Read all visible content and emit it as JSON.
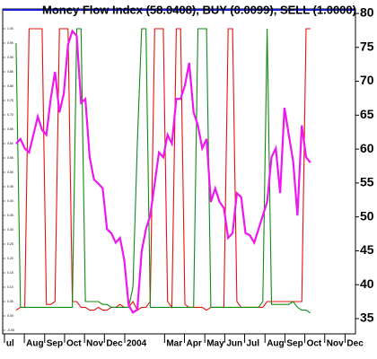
{
  "chart_data": {
    "type": "line",
    "title": "Money Flow Index (58.0408), BUY (0.0099), SELL (1.0000)",
    "x": [
      0,
      1,
      2,
      3,
      4,
      5,
      6,
      7,
      8,
      9,
      10,
      11,
      12,
      13,
      14,
      15,
      16,
      17,
      18,
      19,
      20,
      21,
      22,
      23,
      24,
      25,
      26,
      27,
      28,
      29,
      30,
      31,
      32,
      33,
      34,
      35,
      36,
      37,
      38,
      39,
      40,
      41,
      42,
      43,
      44,
      45,
      46,
      47,
      48,
      49,
      50,
      51,
      52,
      53,
      54,
      55,
      56,
      57,
      58,
      59,
      60,
      61,
      62,
      63,
      64,
      65,
      66,
      67,
      68
    ],
    "series": [
      {
        "name": "SELL",
        "color": "#e8100c",
        "axis": "y",
        "values": [
          0.02,
          0.03,
          0.03,
          1,
          1,
          1,
          1,
          0.04,
          0.04,
          0.05,
          1,
          1,
          1,
          0.05,
          0.05,
          0.03,
          0.03,
          0.02,
          0.02,
          0.03,
          0.02,
          0.02,
          0.03,
          0.03,
          0.04,
          0.03,
          0.03,
          0.05,
          0.02,
          0.03,
          0.03,
          0.05,
          1,
          1,
          1,
          0.05,
          0.03,
          1,
          1,
          0.04,
          0.03,
          0.03,
          0.03,
          0.03,
          0.02,
          0.03,
          0.03,
          0.03,
          0.03,
          1,
          1,
          0.05,
          0.03,
          0.03,
          0.03,
          0.03,
          0.03,
          0.03,
          0.05,
          0.05,
          0.05,
          0.05,
          0.05,
          0.05,
          0.05,
          0.05,
          0.05,
          1,
          1
        ]
      },
      {
        "name": "BUY",
        "color": "#118a12",
        "axis": "y",
        "values": [
          0.95,
          0.03,
          0.03,
          0.03,
          0.03,
          0.03,
          0.03,
          0.03,
          0.03,
          0.03,
          0.03,
          0.03,
          0.03,
          0.03,
          1,
          1,
          0.05,
          0.05,
          0.05,
          0.05,
          0.04,
          0.04,
          0.03,
          0.03,
          0.03,
          0.03,
          0.03,
          0.1,
          0.6,
          1,
          1,
          0.03,
          0.03,
          0.03,
          0.03,
          0.03,
          0.03,
          0.03,
          0.03,
          0.03,
          0.03,
          0.03,
          1,
          1,
          1,
          0.03,
          0.03,
          0.03,
          0.03,
          0.03,
          0.03,
          0.03,
          0.03,
          0.03,
          0.03,
          0.03,
          0.03,
          0.05,
          1,
          0.04,
          0.04,
          0.04,
          0.04,
          0.04,
          0.05,
          0.03,
          0.02,
          0.02,
          0.01
        ]
      },
      {
        "name": "Money Flow Index",
        "color": "#f016f0",
        "axis": "y2",
        "values": [
          60.8,
          61.5,
          60.1,
          59.5,
          62.1,
          64.8,
          62.8,
          62.1,
          67.4,
          71.4,
          65.4,
          68.1,
          75.4,
          77.4,
          76.7,
          66.8,
          67.4,
          58.8,
          55.5,
          54.9,
          54.2,
          48.2,
          47.6,
          46.2,
          46.9,
          43.6,
          37.0,
          35.9,
          36.3,
          44.9,
          48.2,
          50.2,
          54.9,
          59.5,
          58.8,
          62.1,
          60.8,
          67.4,
          67.4,
          69.4,
          72.7,
          65.4,
          63.5,
          60.1,
          61.5,
          52.2,
          54.2,
          52.2,
          51.3,
          46.9,
          47.6,
          53.5,
          52.9,
          47.6,
          47.3,
          46.2,
          48.2,
          50.2,
          52.2,
          58.8,
          60.1,
          53.5,
          66.1,
          62.1,
          58.2,
          50.2,
          63.5,
          58.8,
          58.0
        ]
      }
    ],
    "xlim": [
      -3.1,
      78.4
    ],
    "xticks": [
      {
        "value": -2.7,
        "label": "ul"
      },
      {
        "value": 1.9,
        "label": "Aug"
      },
      {
        "value": 6.6,
        "label": "Sep"
      },
      {
        "value": 11.2,
        "label": "Oct"
      },
      {
        "value": 15.8,
        "label": "Nov"
      },
      {
        "value": 20.4,
        "label": "Dec"
      },
      {
        "value": 25.1,
        "label": "2004"
      },
      {
        "value": 34.3,
        "label": "Mar"
      },
      {
        "value": 38.9,
        "label": "Apr"
      },
      {
        "value": 43.6,
        "label": "May"
      },
      {
        "value": 48.2,
        "label": "Jun"
      },
      {
        "value": 52.8,
        "label": "Jul"
      },
      {
        "value": 57.5,
        "label": "Aug"
      },
      {
        "value": 62.1,
        "label": "Sep"
      },
      {
        "value": 66.7,
        "label": "Oct"
      },
      {
        "value": 71.3,
        "label": "Nov"
      },
      {
        "value": 76.0,
        "label": "Dec"
      }
    ],
    "ylim": [
      -0.0625,
      1.06875
    ],
    "yticks": [
      {
        "value": -0.05,
        "label": "-0.05"
      },
      {
        "value": 0,
        "label": "0.00"
      },
      {
        "value": 0.05,
        "label": "0.05"
      },
      {
        "value": 0.1,
        "label": "0.10"
      },
      {
        "value": 0.15,
        "label": "0.15"
      },
      {
        "value": 0.2,
        "label": "0.20"
      },
      {
        "value": 0.25,
        "label": "0.25"
      },
      {
        "value": 0.3,
        "label": "0.30"
      },
      {
        "value": 0.35,
        "label": "0.35"
      },
      {
        "value": 0.4,
        "label": "0.40"
      },
      {
        "value": 0.45,
        "label": "0.45"
      },
      {
        "value": 0.5,
        "label": "0.50"
      },
      {
        "value": 0.55,
        "label": "0.55"
      },
      {
        "value": 0.6,
        "label": "0.60"
      },
      {
        "value": 0.65,
        "label": "0.65"
      },
      {
        "value": 0.7,
        "label": "0.70"
      },
      {
        "value": 0.75,
        "label": "0.75"
      },
      {
        "value": 0.8,
        "label": "0.80"
      },
      {
        "value": 0.85,
        "label": "0.85"
      },
      {
        "value": 0.9,
        "label": "0.90"
      },
      {
        "value": 0.95,
        "label": "0.95"
      },
      {
        "value": 1,
        "label": "1.00"
      }
    ],
    "y2lim": [
      32.75,
      80.66
    ],
    "y2ticks": [
      35,
      40,
      45,
      50,
      55,
      60,
      65,
      70,
      75,
      80
    ]
  }
}
